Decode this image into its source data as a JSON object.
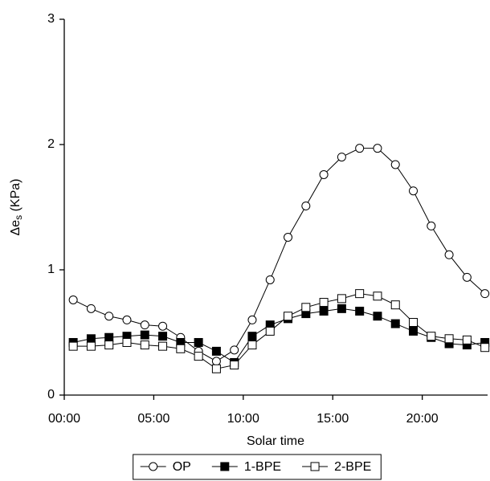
{
  "chart_data": {
    "type": "line",
    "xlabel": "Solar time",
    "ylabel": [
      "Δe",
      "s",
      " (KPa)"
    ],
    "x": [
      0.5,
      1.5,
      2.5,
      3.5,
      4.5,
      5.5,
      6.5,
      7.5,
      8.5,
      9.5,
      10.5,
      11.5,
      12.5,
      13.5,
      14.5,
      15.5,
      16.5,
      17.5,
      18.5,
      19.5,
      20.5,
      21.5,
      22.5,
      23.5
    ],
    "series": [
      {
        "name": "OP",
        "color": "#000000",
        "marker": "circle",
        "filled": false,
        "values": [
          0.76,
          0.69,
          0.63,
          0.6,
          0.56,
          0.55,
          0.46,
          0.35,
          0.27,
          0.36,
          0.6,
          0.92,
          1.26,
          1.51,
          1.76,
          1.9,
          1.97,
          1.97,
          1.84,
          1.63,
          1.35,
          1.12,
          0.94,
          0.81
        ]
      },
      {
        "name": "1-BPE",
        "color": "#000000",
        "marker": "square",
        "filled": true,
        "values": [
          0.42,
          0.45,
          0.46,
          0.47,
          0.48,
          0.47,
          0.42,
          0.42,
          0.35,
          0.26,
          0.47,
          0.56,
          0.61,
          0.65,
          0.67,
          0.69,
          0.67,
          0.63,
          0.57,
          0.51,
          0.46,
          0.41,
          0.4,
          0.42
        ]
      },
      {
        "name": "2-BPE",
        "color": "#000000",
        "marker": "square",
        "filled": false,
        "values": [
          0.39,
          0.39,
          0.4,
          0.42,
          0.4,
          0.39,
          0.37,
          0.31,
          0.21,
          0.24,
          0.4,
          0.51,
          0.63,
          0.7,
          0.74,
          0.77,
          0.81,
          0.79,
          0.72,
          0.58,
          0.47,
          0.45,
          0.44,
          0.38
        ]
      }
    ],
    "xlim": [
      0,
      23.65
    ],
    "xticks": [
      {
        "value": 0,
        "label": "00:00"
      },
      {
        "value": 5,
        "label": "05:00"
      },
      {
        "value": 10,
        "label": "10:00"
      },
      {
        "value": 15,
        "label": "15:00"
      },
      {
        "value": 20,
        "label": "20:00"
      }
    ],
    "ylim": [
      0,
      3
    ],
    "yticks": [
      0,
      1,
      2,
      3
    ],
    "legend": "bottom"
  }
}
